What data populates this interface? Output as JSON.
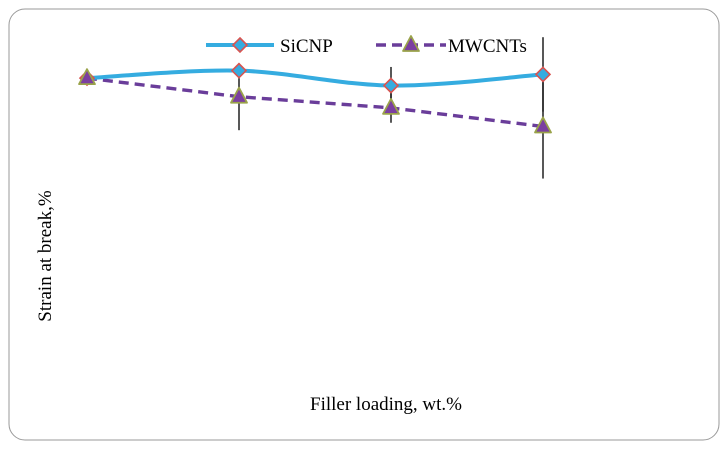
{
  "chart_data": {
    "type": "line",
    "x": [
      0,
      1,
      2,
      3
    ],
    "xlabel": "Filler loading, wt.%",
    "ylabel": "Strain at break,%",
    "ylim": [
      0,
      10
    ],
    "grid": false,
    "legend_position": "top",
    "series": [
      {
        "name": "SiCNP",
        "values": [
          7.9,
          8.1,
          7.7,
          8.0
        ],
        "error": [
          0,
          0,
          0.5,
          1.0
        ],
        "line_color": "#35ace0",
        "line_style": "solid",
        "marker": "diamond",
        "marker_fill": "#35ace0",
        "marker_stroke": "#d9534f"
      },
      {
        "name": "MWCNTs",
        "values": [
          7.9,
          7.4,
          7.1,
          6.6
        ],
        "error": [
          0,
          0.9,
          0.4,
          1.4
        ],
        "line_color": "#6a3d9a",
        "line_style": "dashed",
        "marker": "triangle",
        "marker_fill": "#7b3fa0",
        "marker_stroke": "#9aa34a"
      }
    ]
  }
}
